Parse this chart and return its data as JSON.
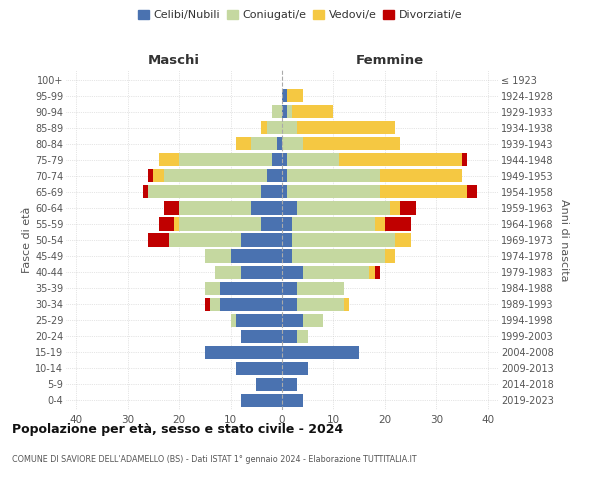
{
  "age_groups": [
    "0-4",
    "5-9",
    "10-14",
    "15-19",
    "20-24",
    "25-29",
    "30-34",
    "35-39",
    "40-44",
    "45-49",
    "50-54",
    "55-59",
    "60-64",
    "65-69",
    "70-74",
    "75-79",
    "80-84",
    "85-89",
    "90-94",
    "95-99",
    "100+"
  ],
  "birth_years": [
    "2019-2023",
    "2014-2018",
    "2009-2013",
    "2004-2008",
    "1999-2003",
    "1994-1998",
    "1989-1993",
    "1984-1988",
    "1979-1983",
    "1974-1978",
    "1969-1973",
    "1964-1968",
    "1959-1963",
    "1954-1958",
    "1949-1953",
    "1944-1948",
    "1939-1943",
    "1934-1938",
    "1929-1933",
    "1924-1928",
    "≤ 1923"
  ],
  "males": {
    "celibi": [
      8,
      5,
      9,
      15,
      8,
      9,
      12,
      12,
      8,
      10,
      8,
      4,
      6,
      4,
      3,
      2,
      1,
      0,
      0,
      0,
      0
    ],
    "coniugati": [
      0,
      0,
      0,
      0,
      0,
      1,
      2,
      3,
      5,
      5,
      14,
      16,
      14,
      22,
      20,
      18,
      5,
      3,
      2,
      0,
      0
    ],
    "vedovi": [
      0,
      0,
      0,
      0,
      0,
      0,
      0,
      0,
      0,
      0,
      0,
      1,
      0,
      0,
      2,
      4,
      3,
      1,
      0,
      0,
      0
    ],
    "divorziati": [
      0,
      0,
      0,
      0,
      0,
      0,
      1,
      0,
      0,
      0,
      4,
      3,
      3,
      1,
      1,
      0,
      0,
      0,
      0,
      0,
      0
    ]
  },
  "females": {
    "nubili": [
      4,
      3,
      5,
      15,
      3,
      4,
      3,
      3,
      4,
      2,
      2,
      2,
      3,
      1,
      1,
      1,
      0,
      0,
      1,
      1,
      0
    ],
    "coniugate": [
      0,
      0,
      0,
      0,
      2,
      4,
      9,
      9,
      13,
      18,
      20,
      16,
      18,
      18,
      18,
      10,
      4,
      3,
      1,
      0,
      0
    ],
    "vedove": [
      0,
      0,
      0,
      0,
      0,
      0,
      1,
      0,
      1,
      2,
      3,
      2,
      2,
      17,
      16,
      24,
      19,
      19,
      8,
      3,
      0
    ],
    "divorziate": [
      0,
      0,
      0,
      0,
      0,
      0,
      0,
      0,
      1,
      0,
      0,
      5,
      3,
      2,
      0,
      1,
      0,
      0,
      0,
      0,
      0
    ]
  },
  "colors": {
    "celibi": "#4a72b0",
    "coniugati": "#c5d8a0",
    "vedovi": "#f5c842",
    "divorziati": "#c00000"
  },
  "title": "Popolazione per età, sesso e stato civile - 2024",
  "subtitle": "COMUNE DI SAVIORE DELL'ADAMELLO (BS) - Dati ISTAT 1° gennaio 2024 - Elaborazione TUTTITALIA.IT",
  "xlabel_left": "Maschi",
  "xlabel_right": "Femmine",
  "ylabel_left": "Fasce di età",
  "ylabel_right": "Anni di nascita",
  "xlim": 42,
  "legend_labels": [
    "Celibi/Nubili",
    "Coniugati/e",
    "Vedovi/e",
    "Divorziati/e"
  ],
  "background_color": "#ffffff",
  "bar_height": 0.82
}
